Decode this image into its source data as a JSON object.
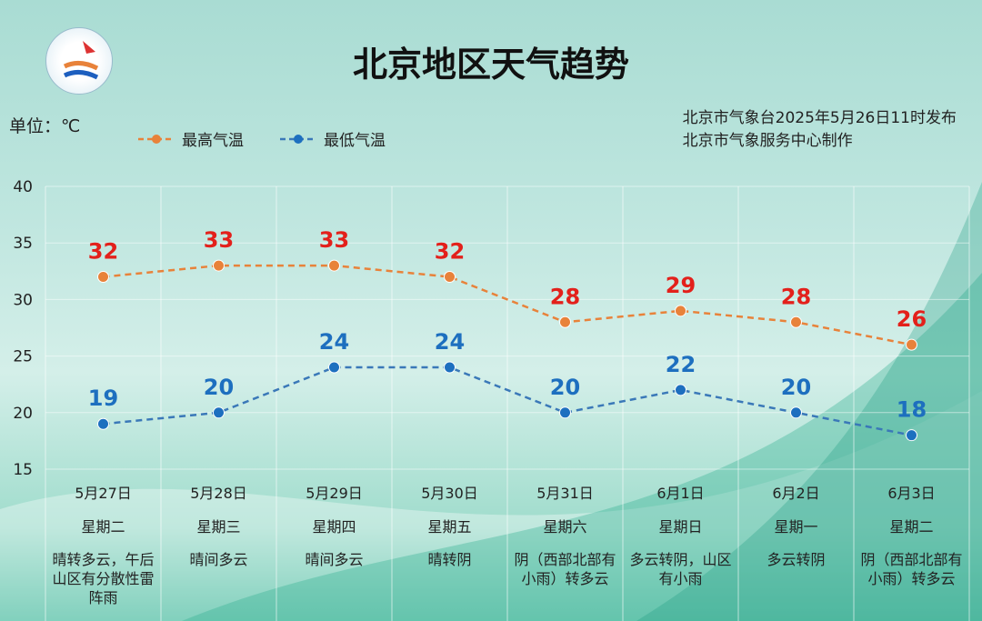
{
  "title": "北京地区天气趋势",
  "unit_label": "单位：℃",
  "publisher": {
    "line1": "北京市气象台2025年5月26日11时发布",
    "line2": "北京市气象服务中心制作"
  },
  "colors": {
    "high_line": "#e8823a",
    "low_line": "#3a78b8",
    "high_label": "#e3201b",
    "low_label": "#1d6fbf"
  },
  "chart_data": {
    "type": "line",
    "title": "北京地区天气趋势",
    "ylim": [
      15,
      40
    ],
    "yticks": [
      15,
      20,
      25,
      30,
      35,
      40
    ],
    "grid": true,
    "legend_placement": "top-left",
    "categories": [
      "5月27日",
      "5月28日",
      "5月29日",
      "5月30日",
      "5月31日",
      "6月1日",
      "6月2日",
      "6月3日"
    ],
    "weekdays": [
      "星期二",
      "星期三",
      "星期四",
      "星期五",
      "星期六",
      "星期日",
      "星期一",
      "星期二"
    ],
    "weather": [
      "晴转多云，午后山区有分散性雷阵雨",
      "晴间多云",
      "晴间多云",
      "晴转阴",
      "阴（西部北部有小雨）转多云",
      "多云转阴，山区有小雨",
      "多云转阴",
      "阴（西部北部有小雨）转多云"
    ],
    "series": [
      {
        "name": "最高气温",
        "values": [
          32,
          33,
          33,
          32,
          28,
          29,
          28,
          26
        ]
      },
      {
        "name": "最低气温",
        "values": [
          19,
          20,
          24,
          24,
          20,
          22,
          20,
          18
        ]
      }
    ]
  }
}
